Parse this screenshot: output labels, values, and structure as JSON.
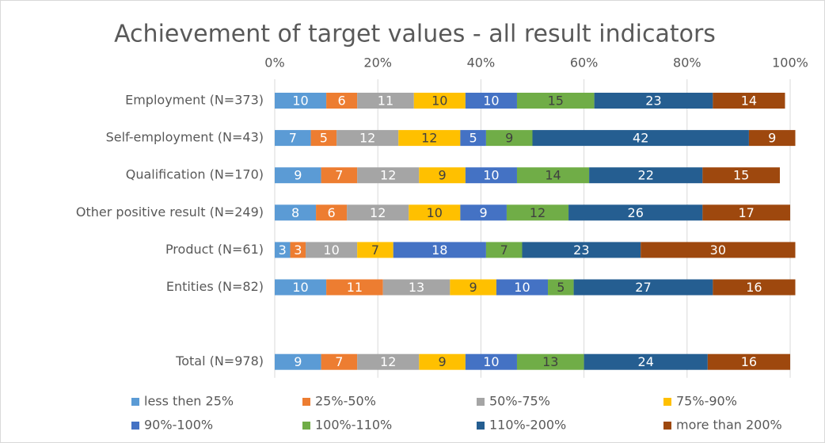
{
  "chart_data": {
    "type": "stacked_bar_horizontal",
    "title": "Achievement of target values - all result indicators",
    "categories": [
      "Employment (N=373)",
      "Self-employment (N=43)",
      "Qualification (N=170)",
      "Other positive result (N=249)",
      "Product (N=61)",
      "Entities (N=82)",
      null,
      "Total (N=978)"
    ],
    "series": [
      {
        "name": "less then 25%",
        "color": "#5b9bd5",
        "values": [
          10,
          7,
          9,
          8,
          3,
          10,
          null,
          9
        ]
      },
      {
        "name": "25%-50%",
        "color": "#ed7d31",
        "values": [
          6,
          5,
          7,
          6,
          3,
          11,
          null,
          7
        ]
      },
      {
        "name": "50%-75%",
        "color": "#a5a5a5",
        "values": [
          11,
          12,
          12,
          12,
          10,
          13,
          null,
          12
        ]
      },
      {
        "name": "75%-90%",
        "color": "#ffc000",
        "values": [
          10,
          12,
          9,
          10,
          7,
          9,
          null,
          9
        ]
      },
      {
        "name": "90%-100%",
        "color": "#4472c4",
        "values": [
          10,
          5,
          10,
          9,
          18,
          10,
          null,
          10
        ]
      },
      {
        "name": "100%-110%",
        "color": "#70ad47",
        "values": [
          15,
          9,
          14,
          12,
          7,
          5,
          null,
          13
        ]
      },
      {
        "name": "110%-200%",
        "color": "#255e91",
        "values": [
          23,
          42,
          22,
          26,
          23,
          27,
          null,
          24
        ]
      },
      {
        "name": "more than 200%",
        "color": "#9e480e",
        "values": [
          14,
          9,
          15,
          17,
          30,
          16,
          null,
          16
        ]
      }
    ],
    "xlim": [
      0,
      100
    ],
    "xticks": [
      {
        "value": 0,
        "label": "0%"
      },
      {
        "value": 20,
        "label": "20%"
      },
      {
        "value": 40,
        "label": "40%"
      },
      {
        "value": 60,
        "label": "60%"
      },
      {
        "value": 80,
        "label": "80%"
      },
      {
        "value": 100,
        "label": "100%"
      }
    ],
    "grid": true,
    "legend": "bottom"
  }
}
